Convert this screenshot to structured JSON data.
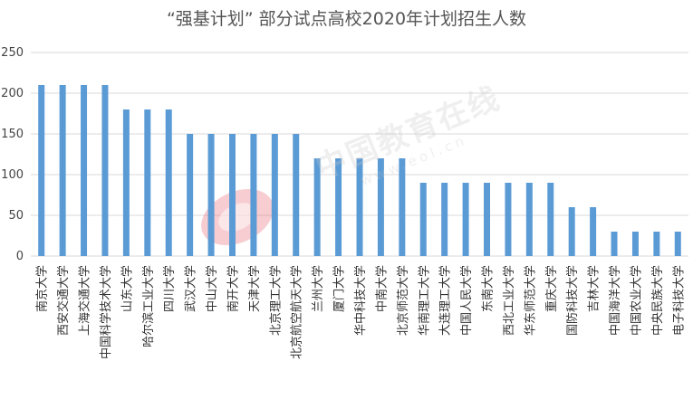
{
  "chart_data": {
    "type": "bar",
    "title": "“强基计划” 部分试点高校2020年计划招生人数",
    "xlabel": "",
    "ylabel": "",
    "ylim": [
      0,
      250
    ],
    "yticks": [
      0,
      50,
      100,
      150,
      200,
      250
    ],
    "grid": true,
    "legend": "none",
    "bar_color": "#5b9bd5",
    "categories": [
      "南京大学",
      "西安交通大学",
      "上海交通大学",
      "中国科学技术大学",
      "山东大学",
      "哈尔滨工业大学",
      "四川大学",
      "武汉大学",
      "中山大学",
      "南开大学",
      "天津大学",
      "北京理工大学",
      "北京航空航天大学",
      "兰州大学",
      "厦门大学",
      "华中科技大学",
      "中南大学",
      "北京师范大学",
      "华南理工大学",
      "大连理工大学",
      "中国人民大学",
      "东南大学",
      "西北工业大学",
      "华东师范大学",
      "重庆大学",
      "国防科技大学",
      "吉林大学",
      "中国海洋大学",
      "中国农业大学",
      "中央民族大学",
      "电子科技大学"
    ],
    "values": [
      210,
      210,
      210,
      210,
      180,
      180,
      180,
      150,
      150,
      150,
      150,
      150,
      150,
      120,
      120,
      120,
      120,
      120,
      90,
      90,
      90,
      90,
      90,
      90,
      90,
      60,
      60,
      30,
      30,
      30,
      30
    ]
  },
  "watermark": {
    "text": "中国教育在线",
    "url": "www.eol.cn",
    "logo_color": "#e8707a"
  }
}
